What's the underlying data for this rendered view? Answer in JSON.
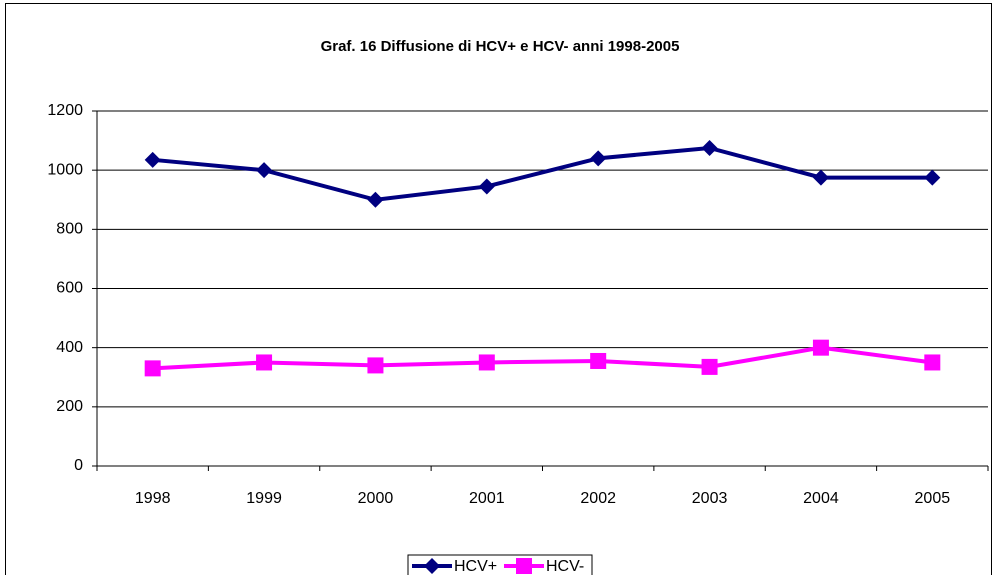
{
  "chart_data": {
    "type": "line",
    "title": "Graf. 16 Diffusione di HCV+ e HCV-  anni 1998-2005",
    "categories": [
      "1998",
      "1999",
      "2000",
      "2001",
      "2002",
      "2003",
      "2004",
      "2005"
    ],
    "series": [
      {
        "name": "HCV+",
        "color": "#000080",
        "marker": "diamond",
        "values": [
          1035,
          1000,
          900,
          945,
          1040,
          1075,
          975,
          975
        ]
      },
      {
        "name": "HCV-",
        "color": "#ff00ff",
        "marker": "square",
        "values": [
          330,
          350,
          340,
          350,
          355,
          335,
          400,
          350
        ]
      }
    ],
    "ylim": [
      0,
      1200
    ],
    "yticks": [
      0,
      200,
      400,
      600,
      800,
      1000,
      1200
    ],
    "grid": true,
    "legend": "bottom"
  }
}
